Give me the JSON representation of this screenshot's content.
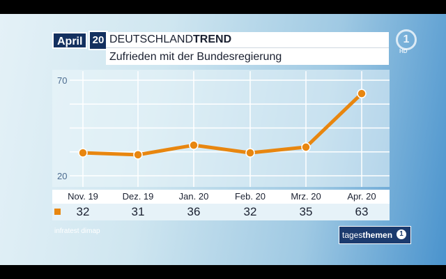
{
  "header": {
    "month_badge": "April",
    "year_badge": "20",
    "brand_prefix": "DEUTSCHLAND",
    "brand_suffix": "TREND",
    "subtitle": "Zufrieden mit der Bundesregierung"
  },
  "channel_logo": {
    "text": "1",
    "hd": "HD",
    "icon": "ard-one-logo-icon"
  },
  "chart_data": {
    "type": "line",
    "title": "Zufrieden mit der Bundesregierung",
    "categories": [
      "Nov. 19",
      "Dez. 19",
      "Jan. 20",
      "Feb. 20",
      "Mrz. 20",
      "Apr. 20"
    ],
    "series": [
      {
        "values": [
          32,
          31,
          36,
          32,
          35,
          63
        ],
        "color": "#e8860f"
      }
    ],
    "y_ticks": [
      70,
      20
    ],
    "ylim": [
      20,
      70
    ],
    "grid": true,
    "legend": "table-left"
  },
  "source": "infratest dimap",
  "show_logo": {
    "prefix": "tages",
    "suffix": "themen",
    "icon": "ard-one-circle-icon"
  }
}
